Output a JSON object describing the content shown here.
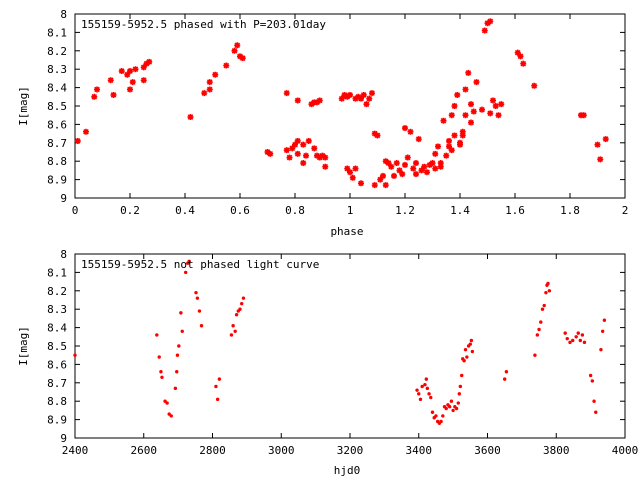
{
  "chart_data": [
    {
      "type": "scatter",
      "title": "155159-5952.5 phased with P=203.01day",
      "xlabel": "phase",
      "ylabel": "I[mag]",
      "xlim": [
        0,
        2
      ],
      "ylim": [
        9,
        8
      ],
      "xticks": [
        "0",
        "0.2",
        "0.4",
        "0.6",
        "0.8",
        "1",
        "1.2",
        "1.4",
        "1.6",
        "1.8",
        "2"
      ],
      "yticks": [
        "8",
        "8.1",
        "8.2",
        "8.3",
        "8.4",
        "8.5",
        "8.6",
        "8.7",
        "8.8",
        "8.9",
        "9"
      ],
      "marker": "star",
      "color": "#ff0000",
      "series": [
        {
          "points": [
            [
              0.01,
              8.69
            ],
            [
              0.04,
              8.64
            ],
            [
              0.07,
              8.45
            ],
            [
              0.08,
              8.41
            ],
            [
              0.13,
              8.36
            ],
            [
              0.14,
              8.44
            ],
            [
              0.17,
              8.31
            ],
            [
              0.19,
              8.33
            ],
            [
              0.2,
              8.31
            ],
            [
              0.2,
              8.41
            ],
            [
              0.21,
              8.37
            ],
            [
              0.22,
              8.3
            ],
            [
              0.25,
              8.36
            ],
            [
              0.25,
              8.29
            ],
            [
              0.26,
              8.27
            ],
            [
              0.27,
              8.26
            ],
            [
              0.42,
              8.56
            ],
            [
              0.47,
              8.43
            ],
            [
              0.49,
              8.41
            ],
            [
              0.49,
              8.37
            ],
            [
              0.51,
              8.33
            ],
            [
              0.55,
              8.28
            ],
            [
              0.58,
              8.2
            ],
            [
              0.59,
              8.17
            ],
            [
              0.6,
              8.23
            ],
            [
              0.61,
              8.24
            ],
            [
              0.7,
              8.75
            ],
            [
              0.71,
              8.76
            ],
            [
              0.77,
              8.74
            ],
            [
              0.77,
              8.43
            ],
            [
              0.78,
              8.78
            ],
            [
              0.79,
              8.73
            ],
            [
              0.8,
              8.71
            ],
            [
              0.81,
              8.69
            ],
            [
              0.81,
              8.76
            ],
            [
              0.81,
              8.47
            ],
            [
              0.83,
              8.71
            ],
            [
              0.83,
              8.81
            ],
            [
              0.84,
              8.77
            ],
            [
              0.85,
              8.69
            ],
            [
              0.86,
              8.49
            ],
            [
              0.87,
              8.73
            ],
            [
              0.87,
              8.48
            ],
            [
              0.88,
              8.77
            ],
            [
              0.88,
              8.48
            ],
            [
              0.89,
              8.78
            ],
            [
              0.89,
              8.47
            ],
            [
              0.9,
              8.77
            ],
            [
              0.91,
              8.83
            ],
            [
              0.91,
              8.78
            ],
            [
              0.97,
              8.46
            ],
            [
              0.98,
              8.44
            ],
            [
              0.99,
              8.84
            ],
            [
              0.99,
              8.45
            ],
            [
              1.0,
              8.86
            ],
            [
              1.0,
              8.44
            ],
            [
              1.01,
              8.89
            ],
            [
              1.02,
              8.84
            ],
            [
              1.02,
              8.46
            ],
            [
              1.03,
              8.45
            ],
            [
              1.04,
              8.46
            ],
            [
              1.04,
              8.92
            ],
            [
              1.05,
              8.44
            ],
            [
              1.06,
              8.49
            ],
            [
              1.07,
              8.46
            ],
            [
              1.08,
              8.43
            ],
            [
              1.09,
              8.93
            ],
            [
              1.09,
              8.65
            ],
            [
              1.1,
              8.66
            ],
            [
              1.11,
              8.9
            ],
            [
              1.12,
              8.88
            ],
            [
              1.13,
              8.93
            ],
            [
              1.13,
              8.8
            ],
            [
              1.14,
              8.81
            ],
            [
              1.15,
              8.83
            ],
            [
              1.16,
              8.88
            ],
            [
              1.17,
              8.81
            ],
            [
              1.18,
              8.85
            ],
            [
              1.19,
              8.87
            ],
            [
              1.2,
              8.62
            ],
            [
              1.2,
              8.82
            ],
            [
              1.21,
              8.78
            ],
            [
              1.22,
              8.64
            ],
            [
              1.23,
              8.84
            ],
            [
              1.24,
              8.87
            ],
            [
              1.24,
              8.81
            ],
            [
              1.25,
              8.68
            ],
            [
              1.26,
              8.85
            ],
            [
              1.27,
              8.83
            ],
            [
              1.28,
              8.86
            ],
            [
              1.29,
              8.82
            ],
            [
              1.3,
              8.81
            ],
            [
              1.31,
              8.84
            ],
            [
              1.31,
              8.76
            ],
            [
              1.32,
              8.72
            ],
            [
              1.33,
              8.83
            ],
            [
              1.33,
              8.81
            ],
            [
              1.34,
              8.58
            ],
            [
              1.35,
              8.77
            ],
            [
              1.36,
              8.69
            ],
            [
              1.36,
              8.72
            ],
            [
              1.37,
              8.74
            ],
            [
              1.37,
              8.55
            ],
            [
              1.38,
              8.5
            ],
            [
              1.38,
              8.66
            ],
            [
              1.39,
              8.44
            ],
            [
              1.4,
              8.71
            ],
            [
              1.4,
              8.7
            ],
            [
              1.41,
              8.64
            ],
            [
              1.41,
              8.66
            ],
            [
              1.42,
              8.41
            ],
            [
              1.42,
              8.55
            ],
            [
              1.43,
              8.32
            ],
            [
              1.44,
              8.59
            ],
            [
              1.44,
              8.49
            ],
            [
              1.45,
              8.53
            ],
            [
              1.46,
              8.37
            ],
            [
              1.48,
              8.52
            ],
            [
              1.49,
              8.09
            ],
            [
              1.5,
              8.05
            ],
            [
              1.51,
              8.04
            ],
            [
              1.51,
              8.54
            ],
            [
              1.52,
              8.47
            ],
            [
              1.53,
              8.5
            ],
            [
              1.54,
              8.55
            ],
            [
              1.55,
              8.49
            ],
            [
              1.61,
              8.21
            ],
            [
              1.62,
              8.23
            ],
            [
              1.63,
              8.27
            ],
            [
              1.67,
              8.39
            ],
            [
              1.84,
              8.55
            ],
            [
              1.85,
              8.55
            ],
            [
              1.9,
              8.71
            ],
            [
              1.91,
              8.79
            ],
            [
              1.93,
              8.68
            ]
          ]
        }
      ]
    },
    {
      "type": "scatter",
      "title": "155159-5952.5 not phased light curve",
      "xlabel": "hjd0",
      "ylabel": "I[mag]",
      "xlim": [
        2400,
        4000
      ],
      "ylim": [
        9,
        8
      ],
      "xticks": [
        "2400",
        "2600",
        "2800",
        "3000",
        "3200",
        "3400",
        "3600",
        "3800",
        "4000"
      ],
      "yticks": [
        "8",
        "8.1",
        "8.2",
        "8.3",
        "8.4",
        "8.5",
        "8.6",
        "8.7",
        "8.8",
        "8.9",
        "9"
      ],
      "marker": "dot",
      "color": "#ff0000",
      "series": [
        {
          "points": [
            [
              2400,
              8.55
            ],
            [
              2638,
              8.44
            ],
            [
              2645,
              8.56
            ],
            [
              2650,
              8.64
            ],
            [
              2653,
              8.67
            ],
            [
              2662,
              8.8
            ],
            [
              2668,
              8.81
            ],
            [
              2674,
              8.87
            ],
            [
              2680,
              8.88
            ],
            [
              2692,
              8.73
            ],
            [
              2696,
              8.64
            ],
            [
              2698,
              8.55
            ],
            [
              2702,
              8.5
            ],
            [
              2708,
              8.32
            ],
            [
              2712,
              8.42
            ],
            [
              2722,
              8.1
            ],
            [
              2728,
              8.05
            ],
            [
              2732,
              8.04
            ],
            [
              2752,
              8.21
            ],
            [
              2756,
              8.24
            ],
            [
              2762,
              8.31
            ],
            [
              2768,
              8.39
            ],
            [
              2810,
              8.72
            ],
            [
              2815,
              8.79
            ],
            [
              2820,
              8.68
            ],
            [
              2855,
              8.44
            ],
            [
              2860,
              8.39
            ],
            [
              2866,
              8.42
            ],
            [
              2870,
              8.33
            ],
            [
              2875,
              8.31
            ],
            [
              2880,
              8.3
            ],
            [
              2885,
              8.27
            ],
            [
              2890,
              8.24
            ],
            [
              3395,
              8.74
            ],
            [
              3400,
              8.76
            ],
            [
              3405,
              8.79
            ],
            [
              3410,
              8.72
            ],
            [
              3418,
              8.71
            ],
            [
              3422,
              8.68
            ],
            [
              3425,
              8.73
            ],
            [
              3430,
              8.76
            ],
            [
              3435,
              8.78
            ],
            [
              3440,
              8.86
            ],
            [
              3445,
              8.89
            ],
            [
              3450,
              8.88
            ],
            [
              3455,
              8.91
            ],
            [
              3460,
              8.92
            ],
            [
              3465,
              8.91
            ],
            [
              3470,
              8.88
            ],
            [
              3475,
              8.83
            ],
            [
              3480,
              8.84
            ],
            [
              3485,
              8.82
            ],
            [
              3490,
              8.83
            ],
            [
              3495,
              8.8
            ],
            [
              3500,
              8.85
            ],
            [
              3505,
              8.83
            ],
            [
              3510,
              8.84
            ],
            [
              3515,
              8.81
            ],
            [
              3518,
              8.76
            ],
            [
              3521,
              8.72
            ],
            [
              3525,
              8.66
            ],
            [
              3528,
              8.57
            ],
            [
              3532,
              8.58
            ],
            [
              3536,
              8.52
            ],
            [
              3540,
              8.56
            ],
            [
              3545,
              8.5
            ],
            [
              3550,
              8.49
            ],
            [
              3553,
              8.47
            ],
            [
              3556,
              8.53
            ],
            [
              3650,
              8.68
            ],
            [
              3655,
              8.64
            ],
            [
              3738,
              8.55
            ],
            [
              3745,
              8.44
            ],
            [
              3750,
              8.41
            ],
            [
              3755,
              8.37
            ],
            [
              3760,
              8.3
            ],
            [
              3765,
              8.28
            ],
            [
              3770,
              8.21
            ],
            [
              3773,
              8.17
            ],
            [
              3776,
              8.16
            ],
            [
              3780,
              8.2
            ],
            [
              3826,
              8.43
            ],
            [
              3832,
              8.46
            ],
            [
              3840,
              8.48
            ],
            [
              3848,
              8.47
            ],
            [
              3858,
              8.45
            ],
            [
              3864,
              8.43
            ],
            [
              3870,
              8.47
            ],
            [
              3876,
              8.44
            ],
            [
              3882,
              8.48
            ],
            [
              3900,
              8.66
            ],
            [
              3905,
              8.69
            ],
            [
              3910,
              8.8
            ],
            [
              3915,
              8.86
            ],
            [
              3930,
              8.52
            ],
            [
              3935,
              8.42
            ],
            [
              3940,
              8.36
            ]
          ]
        }
      ]
    }
  ]
}
